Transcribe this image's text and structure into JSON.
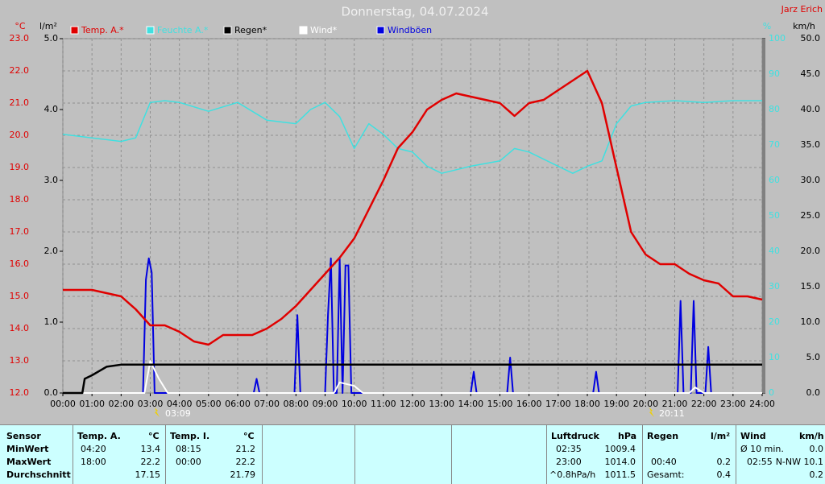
{
  "chart_data": {
    "type": "line",
    "title": "Donnerstag, 04.07.2024",
    "author": "Jarz Erich",
    "grid": true,
    "annotations": [
      "03:09",
      "20:11"
    ],
    "xlim": [
      0,
      24
    ],
    "xticks": [
      {
        "value": 0,
        "label": "00:00"
      },
      {
        "value": 1,
        "label": "01:00"
      },
      {
        "value": 2,
        "label": "02:00"
      },
      {
        "value": 3,
        "label": "03:00"
      },
      {
        "value": 4,
        "label": "04:00"
      },
      {
        "value": 5,
        "label": "05:00"
      },
      {
        "value": 6,
        "label": "06:00"
      },
      {
        "value": 7,
        "label": "07:00"
      },
      {
        "value": 8,
        "label": "08:00"
      },
      {
        "value": 9,
        "label": "09:00"
      },
      {
        "value": 10,
        "label": "10:00"
      },
      {
        "value": 11,
        "label": "11:00"
      },
      {
        "value": 12,
        "label": "12:00"
      },
      {
        "value": 13,
        "label": "13:00"
      },
      {
        "value": 14,
        "label": "14:00"
      },
      {
        "value": 15,
        "label": "15:00"
      },
      {
        "value": 16,
        "label": "16:00"
      },
      {
        "value": 17,
        "label": "17:00"
      },
      {
        "value": 18,
        "label": "18:00"
      },
      {
        "value": 19,
        "label": "19:00"
      },
      {
        "value": 20,
        "label": "20:00"
      },
      {
        "value": 21,
        "label": "21:00"
      },
      {
        "value": 22,
        "label": "22:00"
      },
      {
        "value": 23,
        "label": "23:00"
      },
      {
        "value": 24,
        "label": "24:00"
      }
    ],
    "axes": [
      {
        "label": "°C",
        "color": "#e00000",
        "lim": [
          12,
          23
        ],
        "ticks": [
          {
            "value": 12,
            "label": "12.0"
          },
          {
            "value": 13,
            "label": "13.0"
          },
          {
            "value": 14,
            "label": "14.0"
          },
          {
            "value": 15,
            "label": "15.0"
          },
          {
            "value": 16,
            "label": "16.0"
          },
          {
            "value": 17,
            "label": "17.0"
          },
          {
            "value": 18,
            "label": "18.0"
          },
          {
            "value": 19,
            "label": "19.0"
          },
          {
            "value": 20,
            "label": "20.0"
          },
          {
            "value": 21,
            "label": "21.0"
          },
          {
            "value": 22,
            "label": "22.0"
          },
          {
            "value": 23,
            "label": "23.0"
          }
        ]
      },
      {
        "label": "l/m²",
        "color": "#000000",
        "lim": [
          0,
          5
        ],
        "ticks": [
          {
            "value": 0,
            "label": "0.0"
          },
          {
            "value": 1,
            "label": "1.0"
          },
          {
            "value": 2,
            "label": "2.0"
          },
          {
            "value": 3,
            "label": "3.0"
          },
          {
            "value": 4,
            "label": "4.0"
          },
          {
            "value": 5,
            "label": "5.0"
          }
        ]
      },
      {
        "label": "%",
        "color": "#40e0e0",
        "lim": [
          0,
          100
        ],
        "ticks": [
          0,
          10,
          20,
          30,
          40,
          50,
          60,
          70,
          80,
          90,
          100
        ]
      },
      {
        "label": "km/h",
        "color": "#000000",
        "lim": [
          0,
          50
        ],
        "ticks": [
          {
            "value": 0,
            "label": "0.0"
          },
          {
            "value": 5,
            "label": "5.0"
          },
          {
            "value": 10,
            "label": "10.0"
          },
          {
            "value": 15,
            "label": "15.0"
          },
          {
            "value": 20,
            "label": "20.0"
          },
          {
            "value": 25,
            "label": "25.0"
          },
          {
            "value": 30,
            "label": "30.0"
          },
          {
            "value": 35,
            "label": "35.0"
          },
          {
            "value": 40,
            "label": "40.0"
          },
          {
            "value": 45,
            "label": "45.0"
          },
          {
            "value": 50,
            "label": "50.0"
          }
        ]
      }
    ],
    "series": [
      {
        "name": "Temp. A.*",
        "color": "#e00000",
        "axis": 0,
        "x": [
          0,
          0.5,
          1,
          1.5,
          2,
          2.5,
          3,
          3.5,
          4,
          4.5,
          5,
          5.5,
          6,
          6.5,
          7,
          7.5,
          8,
          8.5,
          9,
          9.5,
          10,
          10.5,
          11,
          11.5,
          12,
          12.5,
          13,
          13.5,
          14,
          14.5,
          15,
          15.5,
          16,
          16.5,
          17,
          17.5,
          18,
          18.5,
          19,
          19.5,
          20,
          20.5,
          21,
          21.5,
          22,
          22.5,
          23,
          23.5,
          24
        ],
        "values": [
          15.2,
          15.2,
          15.2,
          15.1,
          15.0,
          14.6,
          14.1,
          14.1,
          13.9,
          13.6,
          13.5,
          13.8,
          13.8,
          13.8,
          14.0,
          14.3,
          14.7,
          15.2,
          15.7,
          16.2,
          16.8,
          17.7,
          18.6,
          19.6,
          20.1,
          20.8,
          21.1,
          21.3,
          21.2,
          21.1,
          21.0,
          20.6,
          21.0,
          21.1,
          21.4,
          21.7,
          22.0,
          21.0,
          19.0,
          17.0,
          16.3,
          16.0,
          16.0,
          15.7,
          15.5,
          15.4,
          15.0,
          15.0,
          14.9
        ]
      },
      {
        "name": "Feuchte A.*",
        "color": "#40e0e0",
        "axis": 2,
        "x": [
          0,
          1,
          2,
          2.5,
          3,
          3.5,
          4,
          5,
          6,
          7,
          8,
          8.5,
          9,
          9.5,
          10,
          10.5,
          11,
          11.5,
          12,
          12.5,
          13,
          13.5,
          14,
          15,
          15.5,
          16,
          17,
          17.5,
          18,
          18.5,
          19,
          19.5,
          20,
          21,
          22,
          23,
          24
        ],
        "values": [
          73,
          72,
          71,
          72,
          82,
          82.5,
          82,
          79.5,
          82,
          77,
          76,
          80,
          82,
          78,
          69,
          76,
          73,
          69,
          68,
          64,
          62,
          63,
          64,
          65.5,
          69,
          68,
          64,
          62,
          64,
          65.5,
          76,
          81,
          82,
          82.5,
          82,
          82.5,
          82.5
        ]
      },
      {
        "name": "Regen*",
        "color": "#000000",
        "axis": 1,
        "x": [
          0,
          0.67,
          0.75,
          1,
          1.5,
          2,
          24
        ],
        "values": [
          0,
          0,
          0.2,
          0.25,
          0.37,
          0.4,
          0.4
        ]
      },
      {
        "name": "Wind*",
        "color": "#ffffff",
        "axis": 3,
        "x": [
          0,
          2.8,
          3.0,
          3.3,
          3.6,
          9.3,
          9.5,
          10,
          10.3,
          21.5,
          21.7,
          22,
          24
        ],
        "values": [
          0,
          0,
          4.5,
          2,
          0,
          0,
          1.5,
          1,
          0,
          0,
          0.8,
          0,
          0
        ]
      },
      {
        "name": "Windböen",
        "color": "#0000e0",
        "axis": 3,
        "x": [
          0,
          2.75,
          2.85,
          2.95,
          3.05,
          3.15,
          6.55,
          6.65,
          6.75,
          7.95,
          8.05,
          8.15,
          9.0,
          9.1,
          9.2,
          9.3,
          9.4,
          9.5,
          9.6,
          9.7,
          9.8,
          9.9,
          14.0,
          14.1,
          14.2,
          15.25,
          15.35,
          15.45,
          18.2,
          18.3,
          18.4,
          21.1,
          21.2,
          21.3,
          21.55,
          21.65,
          21.75,
          22.05,
          22.15,
          22.25,
          24
        ],
        "values": [
          0,
          0,
          16,
          19,
          17,
          0,
          0,
          2,
          0,
          0,
          11,
          0,
          0,
          11,
          19,
          0,
          0,
          19,
          0,
          18,
          18,
          0,
          0,
          3,
          0,
          0,
          5,
          0,
          0,
          3,
          0,
          0,
          13,
          0,
          0,
          13,
          0,
          0,
          6.5,
          0,
          0
        ]
      }
    ]
  },
  "stats": {
    "sensor": "Sensor",
    "rows": [
      "MinWert",
      "MaxWert",
      "Durchschnitt"
    ],
    "temp_a": {
      "name": "Temp. A.",
      "unit": "°C",
      "min": [
        "04:20",
        "13.4"
      ],
      "max": [
        "18:00",
        "22.2"
      ],
      "avg": "17.15"
    },
    "temp_i": {
      "name": "Temp. I.",
      "unit": "°C",
      "min": [
        "08:15",
        "21.2"
      ],
      "max": [
        "00:00",
        "22.2"
      ],
      "avg": "21.79"
    },
    "pressure": {
      "name": "Luftdruck",
      "unit": "hPa",
      "min": [
        "02:35",
        "1009.4"
      ],
      "max": [
        "23:00",
        "1014.0"
      ],
      "avg": [
        "^0.8hPa/h",
        "1011.5"
      ]
    },
    "rain": {
      "name": "Regen",
      "unit": "l/m²",
      "max": [
        "00:40",
        "0.2"
      ],
      "total": [
        "Gesamt:",
        "0.4"
      ]
    },
    "wind": {
      "name": "Wind",
      "unit": "km/h",
      "avg10": [
        "Ø 10 min.",
        "0.0"
      ],
      "max": [
        "02:55",
        "N-NW 10.1"
      ],
      "avg": "0.2"
    }
  }
}
